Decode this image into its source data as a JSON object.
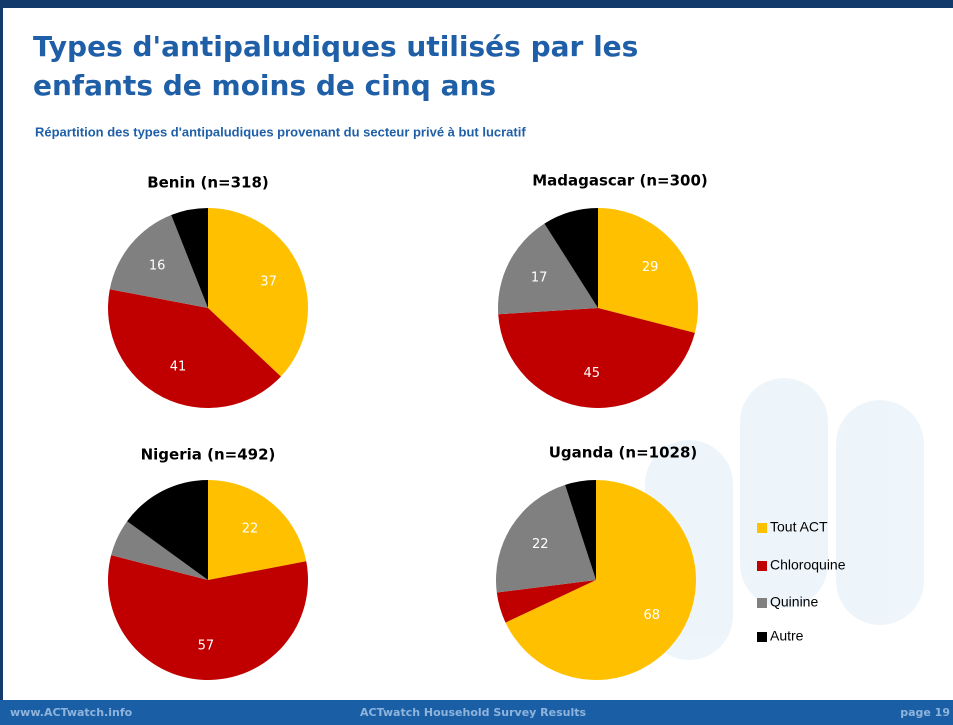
{
  "slide": {
    "title_lines": [
      "Types d'antipaludiques utilisés par les",
      "enfants de moins de cinq ans"
    ],
    "subtitle": "Répartition des types d'antipaludiques provenant du secteur privé à but lucratif",
    "footer_left": "www.ACTwatch.info",
    "footer_center": "ACTwatch Household Survey Results",
    "footer_right": "page 19"
  },
  "legend": {
    "labels": [
      "Tout ACT",
      "Chloroquine",
      "Quinine",
      "Autre"
    ],
    "colors": [
      "#ffc000",
      "#c00000",
      "#808080",
      "#000000"
    ]
  },
  "chart_data": [
    {
      "type": "pie",
      "title": "Benin (n=318)",
      "values": [
        37,
        41,
        16,
        6
      ],
      "value_labels": [
        "37",
        "41",
        "16",
        null
      ]
    },
    {
      "type": "pie",
      "title": "Madagascar (n=300)",
      "values": [
        29,
        45,
        17,
        9
      ],
      "value_labels": [
        "29",
        "45",
        "17",
        null
      ]
    },
    {
      "type": "pie",
      "title": "Nigeria (n=492)",
      "values": [
        22,
        57,
        6,
        15
      ],
      "value_labels": [
        "22",
        "57",
        null,
        null
      ]
    },
    {
      "type": "pie",
      "title": "Uganda (n=1028)",
      "values": [
        68,
        5,
        22,
        5
      ],
      "value_labels": [
        "68",
        null,
        "22",
        null
      ]
    }
  ]
}
